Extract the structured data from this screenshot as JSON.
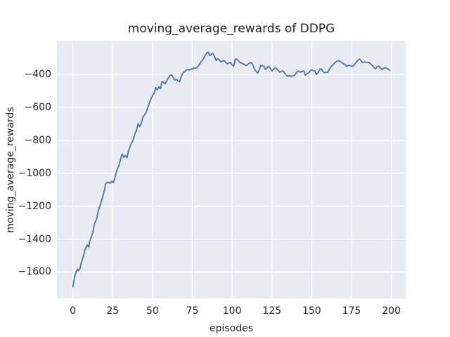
{
  "chart_data": {
    "type": "line",
    "title": "moving_average_rewards of DDPG",
    "xlabel": "episodes",
    "ylabel": "moving_average_rewards",
    "x_ticks": [
      0,
      25,
      50,
      75,
      100,
      125,
      150,
      175,
      200
    ],
    "y_ticks": [
      -400,
      -600,
      -800,
      -1000,
      -1200,
      -1400,
      -1600
    ],
    "xlim": [
      -10,
      209
    ],
    "ylim": [
      -1760,
      -195
    ],
    "grid": true,
    "legend": "none",
    "colors": {
      "line": "#4c72b0",
      "axes_background": "#eaeaf2",
      "gridline": "#ffffff",
      "figure_background": "#ffffff",
      "text": "#262626"
    },
    "series": [
      {
        "name": "moving_average_rewards",
        "points": [
          [
            0,
            -1690
          ],
          [
            1,
            -1633
          ],
          [
            2,
            -1600
          ],
          [
            3,
            -1582
          ],
          [
            3.5,
            -1592
          ],
          [
            4.5,
            -1578
          ],
          [
            5,
            -1553
          ],
          [
            6,
            -1523
          ],
          [
            7,
            -1489
          ],
          [
            7.5,
            -1468
          ],
          [
            8.5,
            -1447
          ],
          [
            9,
            -1434
          ],
          [
            10,
            -1449
          ],
          [
            10.5,
            -1417
          ],
          [
            11.5,
            -1387
          ],
          [
            12.5,
            -1362
          ],
          [
            13.5,
            -1311
          ],
          [
            15,
            -1273
          ],
          [
            16,
            -1226
          ],
          [
            17.5,
            -1184
          ],
          [
            19,
            -1133
          ],
          [
            20,
            -1095
          ],
          [
            20.5,
            -1065
          ],
          [
            22,
            -1053
          ],
          [
            23.5,
            -1061
          ],
          [
            24.5,
            -1048
          ],
          [
            25.5,
            -1057
          ],
          [
            26.5,
            -1023
          ],
          [
            27.5,
            -985
          ],
          [
            29,
            -951
          ],
          [
            30,
            -913
          ],
          [
            31,
            -883
          ],
          [
            32,
            -904
          ],
          [
            33,
            -892
          ],
          [
            34,
            -906
          ],
          [
            35,
            -862
          ],
          [
            36.5,
            -824
          ],
          [
            38,
            -794
          ],
          [
            39,
            -760
          ],
          [
            40,
            -735
          ],
          [
            41,
            -700
          ],
          [
            42,
            -717
          ],
          [
            43,
            -695
          ],
          [
            44,
            -660
          ],
          [
            45,
            -645
          ],
          [
            46,
            -633
          ],
          [
            47,
            -600
          ],
          [
            48,
            -575
          ],
          [
            49,
            -548
          ],
          [
            50,
            -530
          ],
          [
            51,
            -515
          ],
          [
            52,
            -480
          ],
          [
            53,
            -492
          ],
          [
            54,
            -475
          ],
          [
            55,
            -487
          ],
          [
            56,
            -442
          ],
          [
            57,
            -448
          ],
          [
            58,
            -458
          ],
          [
            59,
            -435
          ],
          [
            60,
            -420
          ],
          [
            61,
            -406
          ],
          [
            62,
            -402
          ],
          [
            63,
            -418
          ],
          [
            64,
            -434
          ],
          [
            65,
            -428
          ],
          [
            66,
            -438
          ],
          [
            67,
            -444
          ],
          [
            68,
            -415
          ],
          [
            69,
            -392
          ],
          [
            70,
            -385
          ],
          [
            71,
            -375
          ],
          [
            72,
            -370
          ],
          [
            73,
            -374
          ],
          [
            74,
            -368
          ],
          [
            75,
            -366
          ],
          [
            76,
            -360
          ],
          [
            77,
            -362
          ],
          [
            78,
            -358
          ],
          [
            79,
            -345
          ],
          [
            80,
            -330
          ],
          [
            81,
            -318
          ],
          [
            82,
            -303
          ],
          [
            83,
            -288
          ],
          [
            84,
            -270
          ],
          [
            85,
            -264
          ],
          [
            86,
            -286
          ],
          [
            87,
            -276
          ],
          [
            88,
            -273
          ],
          [
            89,
            -292
          ],
          [
            90,
            -315
          ],
          [
            91,
            -303
          ],
          [
            92,
            -312
          ],
          [
            93,
            -324
          ],
          [
            94,
            -317
          ],
          [
            95,
            -315
          ],
          [
            96,
            -327
          ],
          [
            97,
            -336
          ],
          [
            98,
            -330
          ],
          [
            99,
            -328
          ],
          [
            100,
            -342
          ],
          [
            101,
            -349
          ],
          [
            102,
            -307
          ],
          [
            103,
            -308
          ],
          [
            104,
            -316
          ],
          [
            105,
            -328
          ],
          [
            106,
            -331
          ],
          [
            107,
            -336
          ],
          [
            108,
            -341
          ],
          [
            109,
            -345
          ],
          [
            110,
            -337
          ],
          [
            111,
            -330
          ],
          [
            112,
            -328
          ],
          [
            113,
            -342
          ],
          [
            114,
            -366
          ],
          [
            115,
            -381
          ],
          [
            116,
            -392
          ],
          [
            117,
            -373
          ],
          [
            118,
            -345
          ],
          [
            119,
            -348
          ],
          [
            120,
            -349
          ],
          [
            121,
            -370
          ],
          [
            122,
            -359
          ],
          [
            123,
            -349
          ],
          [
            124,
            -362
          ],
          [
            125,
            -379
          ],
          [
            126,
            -369
          ],
          [
            127,
            -358
          ],
          [
            128,
            -366
          ],
          [
            129,
            -374
          ],
          [
            130,
            -387
          ],
          [
            131,
            -381
          ],
          [
            132,
            -379
          ],
          [
            133,
            -392
          ],
          [
            134,
            -405
          ],
          [
            135,
            -412
          ],
          [
            136,
            -407
          ],
          [
            137,
            -412
          ],
          [
            138,
            -409
          ],
          [
            139,
            -408
          ],
          [
            140,
            -394
          ],
          [
            141,
            -384
          ],
          [
            142,
            -379
          ],
          [
            143,
            -387
          ],
          [
            144,
            -381
          ],
          [
            145,
            -379
          ],
          [
            146,
            -405
          ],
          [
            147,
            -394
          ],
          [
            148,
            -390
          ],
          [
            149,
            -379
          ],
          [
            150,
            -370
          ],
          [
            151,
            -378
          ],
          [
            152,
            -379
          ],
          [
            153,
            -400
          ],
          [
            154,
            -389
          ],
          [
            155,
            -370
          ],
          [
            156,
            -366
          ],
          [
            157,
            -381
          ],
          [
            158,
            -390
          ],
          [
            159,
            -388
          ],
          [
            160,
            -387
          ],
          [
            161,
            -369
          ],
          [
            162,
            -354
          ],
          [
            163,
            -345
          ],
          [
            164,
            -334
          ],
          [
            165,
            -324
          ],
          [
            166,
            -319
          ],
          [
            167,
            -315
          ],
          [
            168,
            -322
          ],
          [
            169,
            -328
          ],
          [
            170,
            -336
          ],
          [
            171,
            -341
          ],
          [
            172,
            -351
          ],
          [
            173,
            -344
          ],
          [
            174,
            -345
          ],
          [
            175,
            -349
          ],
          [
            176,
            -350
          ],
          [
            177,
            -339
          ],
          [
            178,
            -324
          ],
          [
            179,
            -314
          ],
          [
            180,
            -307
          ],
          [
            181,
            -316
          ],
          [
            182,
            -328
          ],
          [
            183,
            -324
          ],
          [
            184,
            -325
          ],
          [
            185,
            -326
          ],
          [
            186,
            -328
          ],
          [
            187,
            -336
          ],
          [
            188,
            -345
          ],
          [
            189,
            -356
          ],
          [
            190,
            -366
          ],
          [
            191,
            -354
          ],
          [
            192,
            -349
          ],
          [
            193,
            -361
          ],
          [
            194,
            -370
          ],
          [
            195,
            -364
          ],
          [
            196,
            -358
          ],
          [
            197,
            -363
          ],
          [
            198,
            -368
          ],
          [
            199,
            -375
          ]
        ]
      }
    ]
  }
}
